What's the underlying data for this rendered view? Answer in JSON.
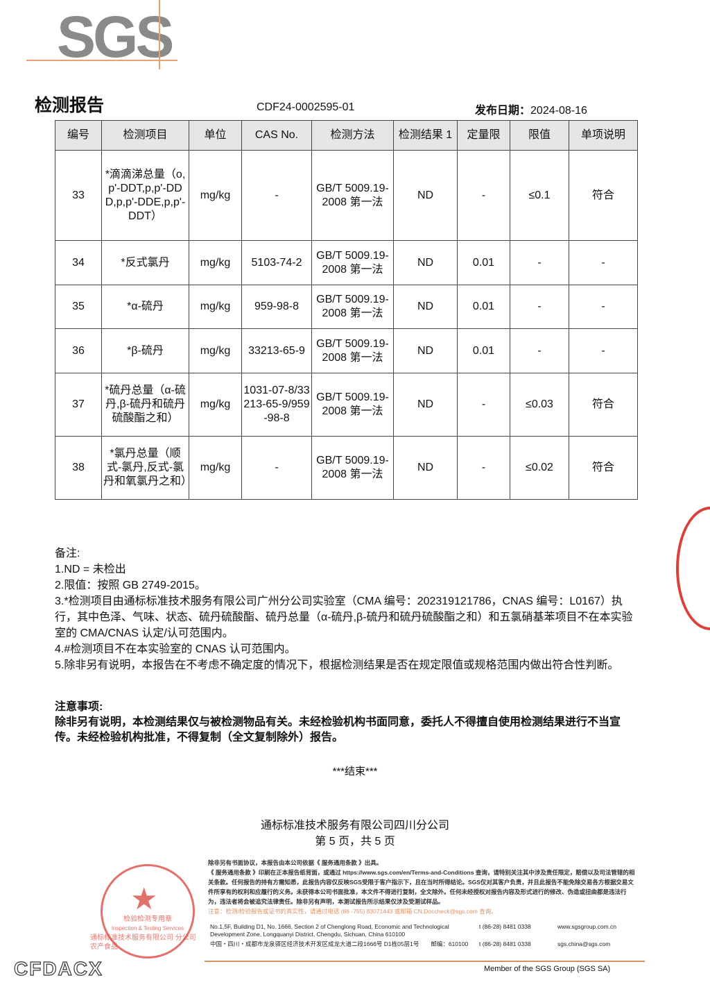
{
  "logo": "SGS",
  "header": {
    "title": "检测报告",
    "report_no": "CDF24-0002595-01",
    "date_label": "发布日期：",
    "date": "2024-08-16"
  },
  "table": {
    "headers": [
      "编号",
      "检测项目",
      "单位",
      "CAS No.",
      "检测方法",
      "检测结果 1",
      "定量限",
      "限值",
      "单项说明"
    ],
    "rows": [
      [
        "33",
        "*滴滴涕总量（o,p'-DDT,p,p'-DDD,p,p'-DDE,p,p'-DDT）",
        "mg/kg",
        "-",
        "GB/T 5009.19-2008 第一法",
        "ND",
        "-",
        "≤0.1",
        "符合"
      ],
      [
        "34",
        "*反式氯丹",
        "mg/kg",
        "5103-74-2",
        "GB/T 5009.19-2008 第一法",
        "ND",
        "0.01",
        "-",
        "-"
      ],
      [
        "35",
        "*α-硫丹",
        "mg/kg",
        "959-98-8",
        "GB/T 5009.19-2008 第一法",
        "ND",
        "0.01",
        "-",
        "-"
      ],
      [
        "36",
        "*β-硫丹",
        "mg/kg",
        "33213-65-9",
        "GB/T 5009.19-2008 第一法",
        "ND",
        "0.01",
        "-",
        "-"
      ],
      [
        "37",
        "*硫丹总量（α-硫丹,β-硫丹和硫丹硫酸酯之和）",
        "mg/kg",
        "1031-07-8/33213-65-9/959-98-8",
        "GB/T 5009.19-2008 第一法",
        "ND",
        "-",
        "≤0.03",
        "符合"
      ],
      [
        "38",
        "*氯丹总量（顺式-氯丹,反式-氯丹和氧氯丹之和）",
        "mg/kg",
        "-",
        "GB/T 5009.19-2008 第一法",
        "ND",
        "-",
        "≤0.02",
        "符合"
      ]
    ]
  },
  "notes": [
    "备注:",
    "1.ND = 未检出",
    "2.限值：按照 GB 2749-2015。",
    "3.*检测项目由通标标准技术服务有限公司广州分公司实验室（CMA 编号：202319121786，CNAS 编号：L0167）执行，其中色泽、气味、状态、硫丹硫酸酯、硫丹总量（α-硫丹,β-硫丹和硫丹硫酸酯之和）和五氯硝基苯项目不在本实验室的 CMA/CNAS 认定/认可范围内。",
    "4.#检测项目不在本实验室的 CNAS 认可范围内。",
    "5.除非另有说明，本报告在不考虑不确定度的情况下，根据检测结果是否在规定限值或规格范围内做出符合性判断。"
  ],
  "attention": [
    "注意事项:",
    "除非另有说明，本检测结果仅与被检测物品有关。未经检验机构书面同意，委托人不得擅自使用检测结果进行不当宣传。未经检验机构批准，不得复制（全文复制除外）报告。"
  ],
  "end": "***结束***",
  "company": "通标标准技术服务有限公司四川分公司",
  "page": "第 5 页，共 5 页",
  "fine_print": [
    "除非另有书面协议，本报告由本公司依据《 服务通用条款 》出具。",
    "《 服务通用条款 》印刷在正本报告纸背面，或通过 https://www.sgs.com/en/Terms-and-Conditions 查询，请特别关注其中涉及责任限定，赔偿以及司法管辖的相关条款。任何报告的持有方需知悉，此报告内容仅反映SGS受限于客户指示下，且在当时所得结论。SGS仅对其客户负责，并且此报告不能免除交易各方根据交易文件所享有的权利和应履行的义务。未获得本公司书面批准，本文件不得进行复制，全文除外。任何未经授权对报告内容及形式进行的修改、伪造或扭曲都是违法行为，违法者将会被追究法律责任。除非另有声明，本测试报告所示结果仅涉及受测试样品。"
  ],
  "verify": "注意：检测/检验报告或证书的真实性，请通过电话 (86 -755) 83071443 或邮箱 CN.Doccheck@sgs.com 查询。",
  "address": {
    "en": "No.1,5F, Building D1, No. 1666, Section 2 of Chenglong Road, Economic and Technological Development Zone, Longquanyi District, Chengdu, Sichuan, China  610100",
    "cn": "中国・四川・成都市龙泉驿区经济技术开发区成龙大道二段1666号 D1栋05层1号　　邮编：610100",
    "tel1": "t (86-28) 8481 0338",
    "tel2": "t (86-28) 8481 0338",
    "web": "www.sgsgroup.com.cn",
    "email": "sgs.china@sgs.com"
  },
  "member": "Member of the SGS Group (SGS SA)",
  "stamp": {
    "text": "检验检测专用章",
    "en": "Inspection & Testing Services",
    "ring": "通标标准技术服务有限公司四川分公司",
    "below1": "通标标准技术服务有限公司 分公司",
    "below2": "农产食品"
  },
  "watermark": "CFDACX",
  "colors": {
    "stamp_red": "#d9423a",
    "accent_orange": "#e8a070"
  }
}
